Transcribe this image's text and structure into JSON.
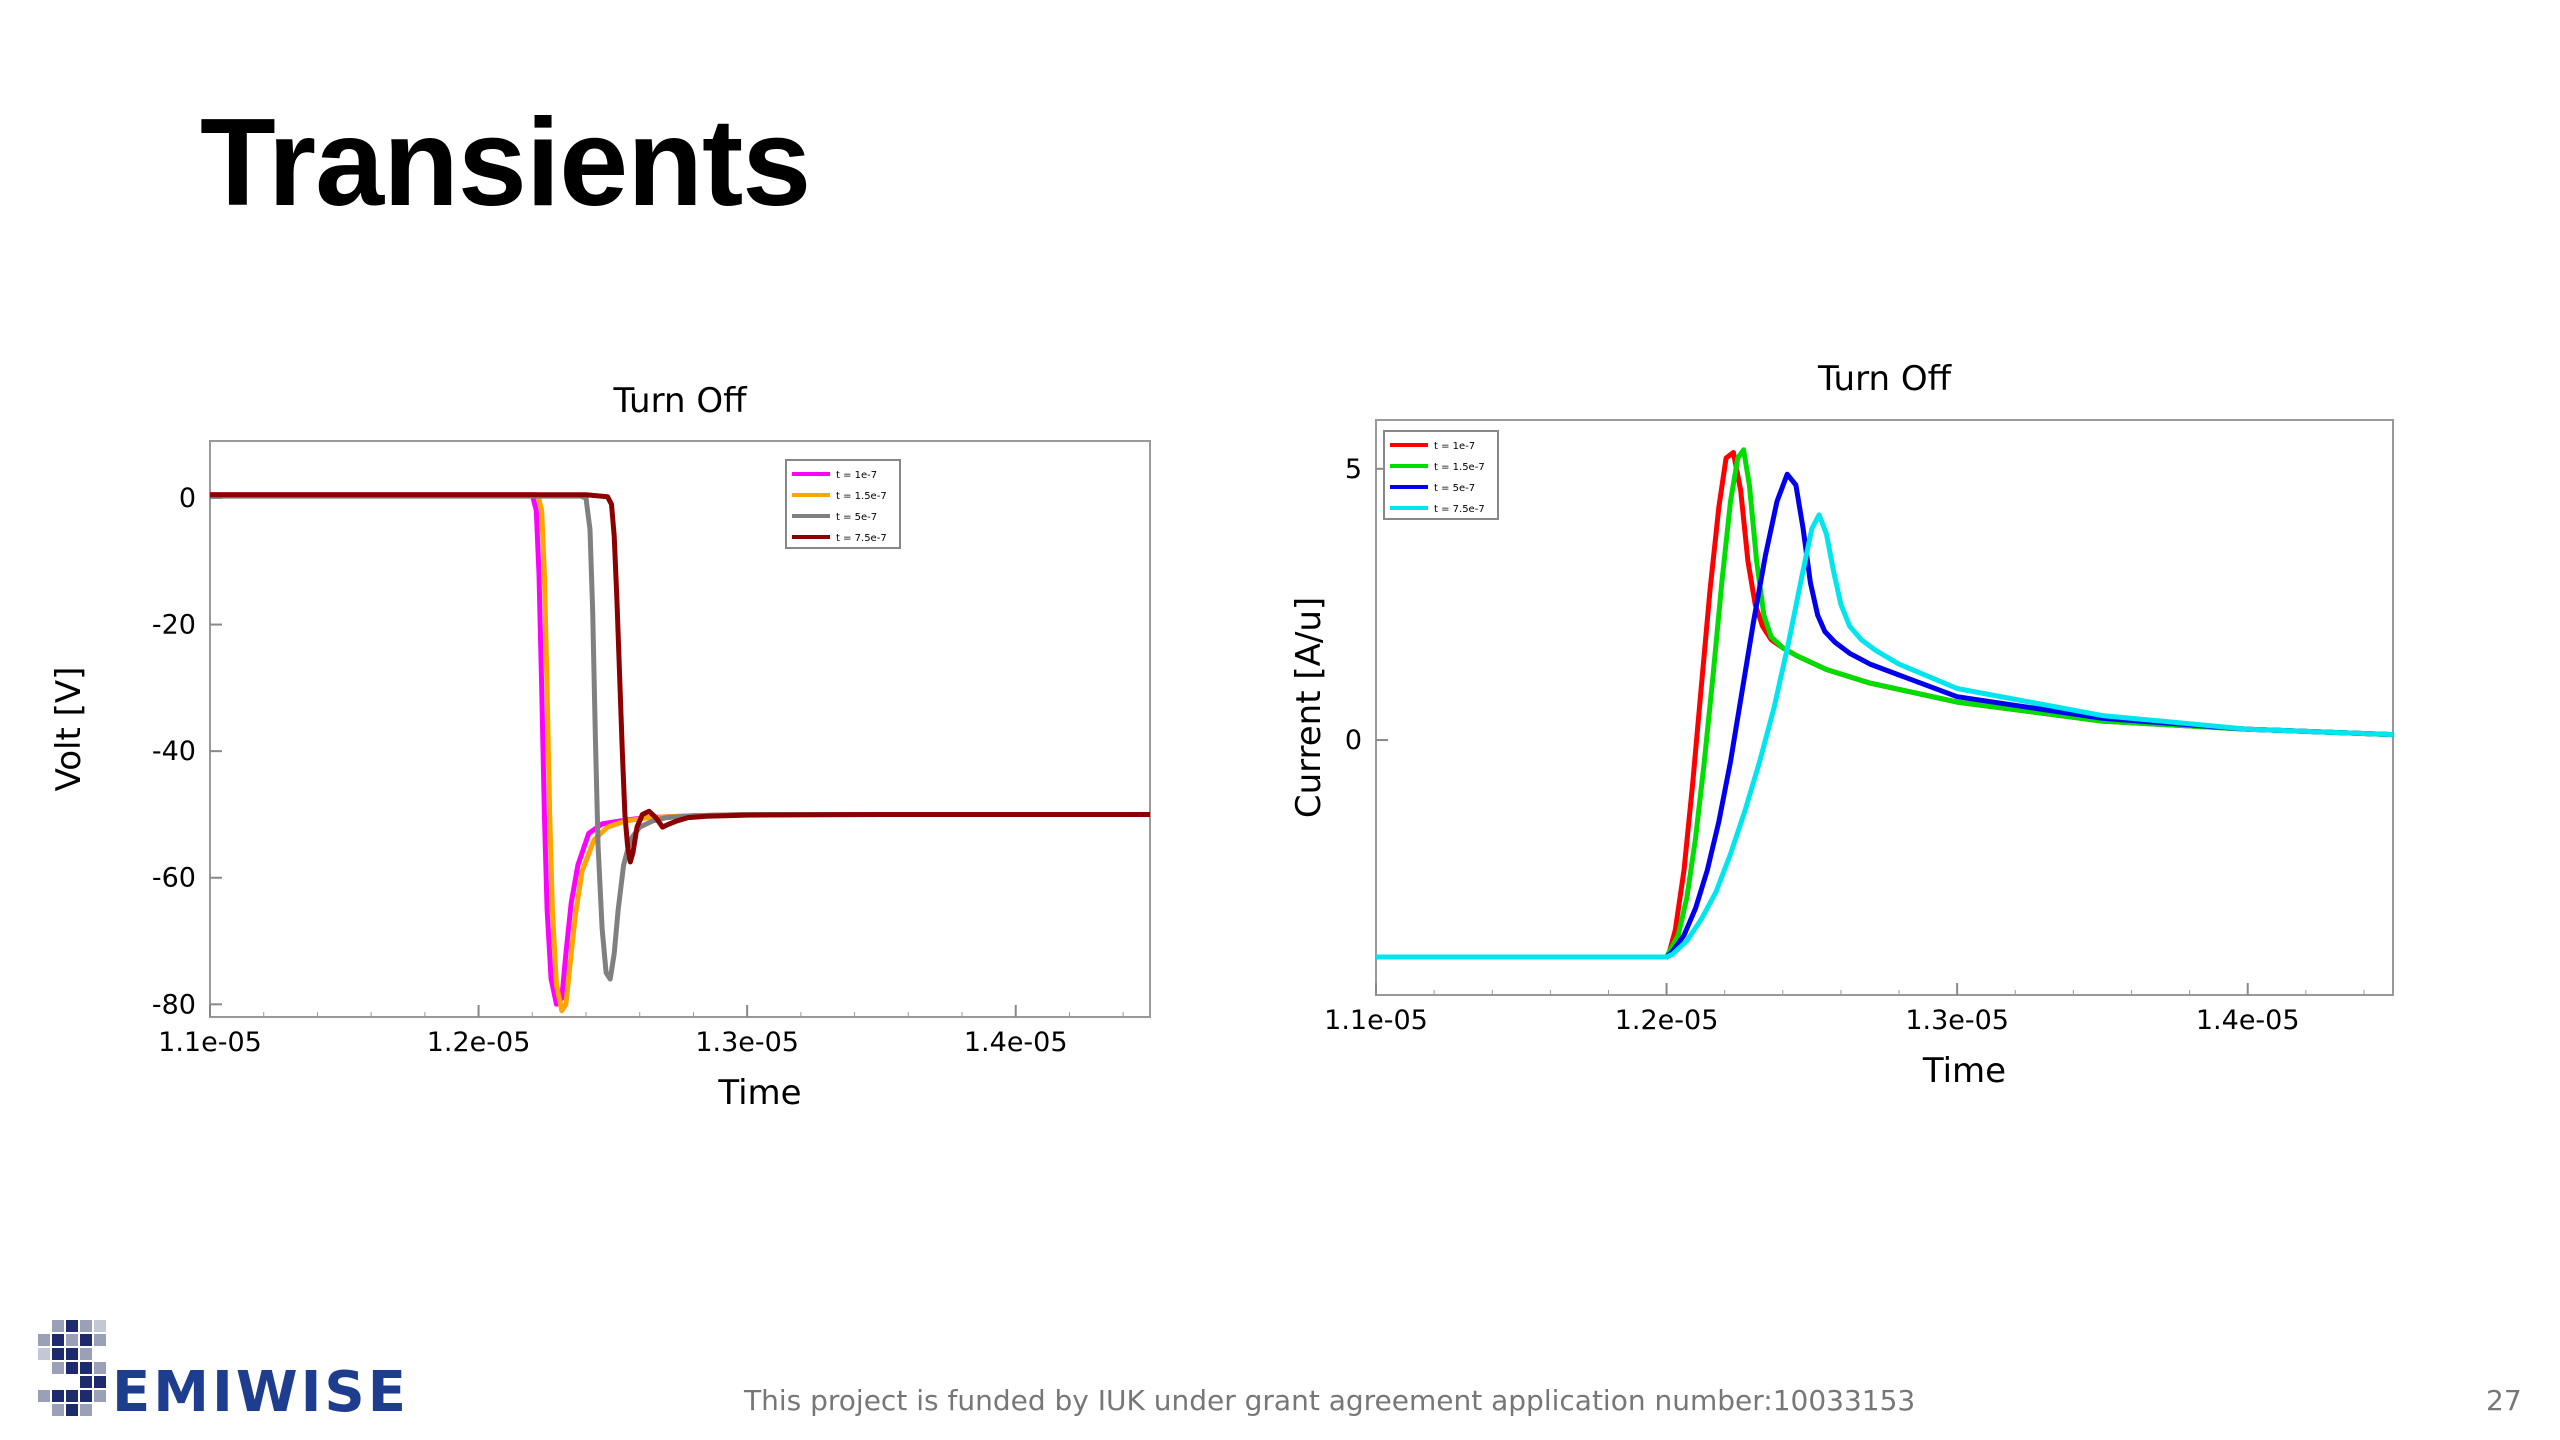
{
  "slide": {
    "title": "Transients",
    "footer": "This project is funded by IUK under grant agreement application number:10033153",
    "page_number": "27",
    "logo_text": "EMIWISE",
    "logo_letter": "S"
  },
  "chart_data": [
    {
      "type": "line",
      "title": "Turn Off",
      "xlabel": "Time",
      "ylabel": "Volt [V]",
      "xlim": [
        1.1e-05,
        1.45e-05
      ],
      "ylim": [
        -82,
        9
      ],
      "xticks": [
        1.1e-05,
        1.2e-05,
        1.3e-05,
        1.4e-05
      ],
      "xtick_labels": [
        "1.1e-05",
        "1.2e-05",
        "1.3e-05",
        "1.4e-05"
      ],
      "yticks": [
        0,
        -20,
        -40,
        -60,
        -80
      ],
      "ytick_labels": [
        "0",
        "-20",
        "-40",
        "-60",
        "-80"
      ],
      "legend_position": "top-right",
      "grid": false,
      "series": [
        {
          "name": "t = 1e-7",
          "color": "#ff00ff",
          "x": [
            1.1e-05,
            1.218e-05,
            1.22e-05,
            1.2215e-05,
            1.2225e-05,
            1.2235e-05,
            1.2245e-05,
            1.2255e-05,
            1.227e-05,
            1.229e-05,
            1.231e-05,
            1.2325e-05,
            1.2345e-05,
            1.237e-05,
            1.241e-05,
            1.246e-05,
            1.253e-05,
            1.262e-05,
            1.28e-05,
            1.3e-05,
            1.35e-05,
            1.45e-05
          ],
          "y": [
            0.5,
            0.5,
            0.5,
            -2,
            -12,
            -30,
            -50,
            -65,
            -76,
            -80,
            -79,
            -72,
            -64,
            -58,
            -53,
            -51.5,
            -51,
            -50.5,
            -50.2,
            -50,
            -50,
            -50
          ]
        },
        {
          "name": "t = 1.5e-7",
          "color": "#ffa500",
          "x": [
            1.1e-05,
            1.22e-05,
            1.222e-05,
            1.2235e-05,
            1.2245e-05,
            1.2255e-05,
            1.2265e-05,
            1.2275e-05,
            1.229e-05,
            1.231e-05,
            1.2325e-05,
            1.234e-05,
            1.236e-05,
            1.2385e-05,
            1.243e-05,
            1.248e-05,
            1.255e-05,
            1.263e-05,
            1.28e-05,
            1.3e-05,
            1.35e-05,
            1.45e-05
          ],
          "y": [
            0.5,
            0.5,
            0.5,
            -2,
            -12,
            -30,
            -50,
            -65,
            -77,
            -81,
            -80,
            -74,
            -66,
            -59,
            -54,
            -52,
            -51,
            -50.5,
            -50.2,
            -50,
            -50,
            -50
          ]
        },
        {
          "name": "t = 5e-7",
          "color": "#808080",
          "x": [
            1.1e-05,
            1.238e-05,
            1.24e-05,
            1.2415e-05,
            1.2425e-05,
            1.2435e-05,
            1.2445e-05,
            1.246e-05,
            1.2475e-05,
            1.249e-05,
            1.2505e-05,
            1.252e-05,
            1.254e-05,
            1.2565e-05,
            1.26e-05,
            1.265e-05,
            1.27e-05,
            1.28e-05,
            1.3e-05,
            1.35e-05,
            1.45e-05
          ],
          "y": [
            0.3,
            0.3,
            0,
            -5,
            -18,
            -38,
            -55,
            -68,
            -75,
            -76,
            -72,
            -65,
            -58,
            -54,
            -52,
            -51,
            -50.5,
            -50.2,
            -50,
            -50,
            -50
          ]
        },
        {
          "name": "t = 7.5e-7",
          "color": "#8b0000",
          "x": [
            1.1e-05,
            1.24e-05,
            1.248e-05,
            1.2495e-05,
            1.2505e-05,
            1.2515e-05,
            1.2525e-05,
            1.2535e-05,
            1.2545e-05,
            1.2555e-05,
            1.2565e-05,
            1.2575e-05,
            1.259e-05,
            1.261e-05,
            1.2635e-05,
            1.266e-05,
            1.2685e-05,
            1.271e-05,
            1.274e-05,
            1.278e-05,
            1.285e-05,
            1.3e-05,
            1.35e-05,
            1.45e-05
          ],
          "y": [
            0.5,
            0.5,
            0.2,
            -1,
            -6,
            -16,
            -28,
            -40,
            -50,
            -55,
            -57.5,
            -56,
            -52,
            -50,
            -49.5,
            -50.5,
            -52,
            -51.5,
            -51,
            -50.5,
            -50.3,
            -50.1,
            -50,
            -50
          ]
        }
      ]
    },
    {
      "type": "line",
      "title": "Turn Off",
      "xlabel": "Time",
      "ylabel": "Current [A/u]",
      "xlim": [
        1.1e-05,
        1.45e-05
      ],
      "ylim": [
        -4.7,
        5.9
      ],
      "xticks": [
        1.1e-05,
        1.2e-05,
        1.3e-05,
        1.4e-05
      ],
      "xtick_labels": [
        "1.1e-05",
        "1.2e-05",
        "1.3e-05",
        "1.4e-05"
      ],
      "yticks": [
        5,
        0
      ],
      "ytick_labels": [
        "5",
        "0"
      ],
      "legend_position": "top-left",
      "grid": false,
      "series": [
        {
          "name": "t = 1e-7",
          "color": "#ff0000",
          "x": [
            1.1e-05,
            1.2e-05,
            1.201e-05,
            1.203e-05,
            1.206e-05,
            1.209e-05,
            1.212e-05,
            1.215e-05,
            1.218e-05,
            1.2205e-05,
            1.223e-05,
            1.2255e-05,
            1.228e-05,
            1.2305e-05,
            1.233e-05,
            1.236e-05,
            1.24e-05,
            1.245e-05,
            1.255e-05,
            1.27e-05,
            1.3e-05,
            1.35e-05,
            1.4e-05,
            1.45e-05
          ],
          "y": [
            -4,
            -4,
            -3.9,
            -3.5,
            -2.4,
            -0.8,
            1,
            2.8,
            4.3,
            5.2,
            5.3,
            4.6,
            3.3,
            2.5,
            2.1,
            1.85,
            1.7,
            1.55,
            1.3,
            1.05,
            0.7,
            0.35,
            0.2,
            0.1
          ]
        },
        {
          "name": "t = 1.5e-7",
          "color": "#00dd00",
          "x": [
            1.1e-05,
            1.2e-05,
            1.201e-05,
            1.204e-05,
            1.207e-05,
            1.21e-05,
            1.213e-05,
            1.216e-05,
            1.219e-05,
            1.222e-05,
            1.2245e-05,
            1.2265e-05,
            1.2285e-05,
            1.231e-05,
            1.2335e-05,
            1.236e-05,
            1.24e-05,
            1.245e-05,
            1.255e-05,
            1.27e-05,
            1.3e-05,
            1.35e-05,
            1.4e-05,
            1.45e-05
          ],
          "y": [
            -4,
            -4,
            -3.9,
            -3.6,
            -2.9,
            -1.8,
            -0.4,
            1.2,
            2.9,
            4.4,
            5.2,
            5.35,
            4.7,
            3.3,
            2.3,
            1.9,
            1.7,
            1.55,
            1.3,
            1.05,
            0.7,
            0.35,
            0.2,
            0.1
          ]
        },
        {
          "name": "t = 5e-7",
          "color": "#0000ee",
          "x": [
            1.1e-05,
            1.2e-05,
            1.202e-05,
            1.206e-05,
            1.21e-05,
            1.214e-05,
            1.218e-05,
            1.222e-05,
            1.226e-05,
            1.23e-05,
            1.234e-05,
            1.238e-05,
            1.2415e-05,
            1.2445e-05,
            1.247e-05,
            1.2495e-05,
            1.252e-05,
            1.2545e-05,
            1.258e-05,
            1.263e-05,
            1.27e-05,
            1.28e-05,
            1.3e-05,
            1.35e-05,
            1.4e-05,
            1.45e-05
          ],
          "y": [
            -4,
            -4,
            -3.9,
            -3.6,
            -3.1,
            -2.4,
            -1.5,
            -0.4,
            0.9,
            2.2,
            3.4,
            4.4,
            4.9,
            4.7,
            3.9,
            2.9,
            2.3,
            2.0,
            1.8,
            1.6,
            1.4,
            1.2,
            0.8,
            0.4,
            0.2,
            0.1
          ]
        },
        {
          "name": "t = 7.5e-7",
          "color": "#00e5ee",
          "x": [
            1.1e-05,
            1.2e-05,
            1.202e-05,
            1.207e-05,
            1.212e-05,
            1.217e-05,
            1.222e-05,
            1.227e-05,
            1.232e-05,
            1.237e-05,
            1.242e-05,
            1.2465e-05,
            1.25e-05,
            1.2525e-05,
            1.255e-05,
            1.2575e-05,
            1.26e-05,
            1.263e-05,
            1.267e-05,
            1.272e-05,
            1.28e-05,
            1.3e-05,
            1.35e-05,
            1.4e-05,
            1.45e-05
          ],
          "y": [
            -4,
            -4,
            -3.95,
            -3.7,
            -3.3,
            -2.8,
            -2.1,
            -1.3,
            -0.4,
            0.6,
            1.8,
            3.0,
            3.9,
            4.15,
            3.8,
            3.1,
            2.5,
            2.1,
            1.85,
            1.65,
            1.4,
            0.95,
            0.45,
            0.2,
            0.1
          ]
        }
      ]
    }
  ]
}
